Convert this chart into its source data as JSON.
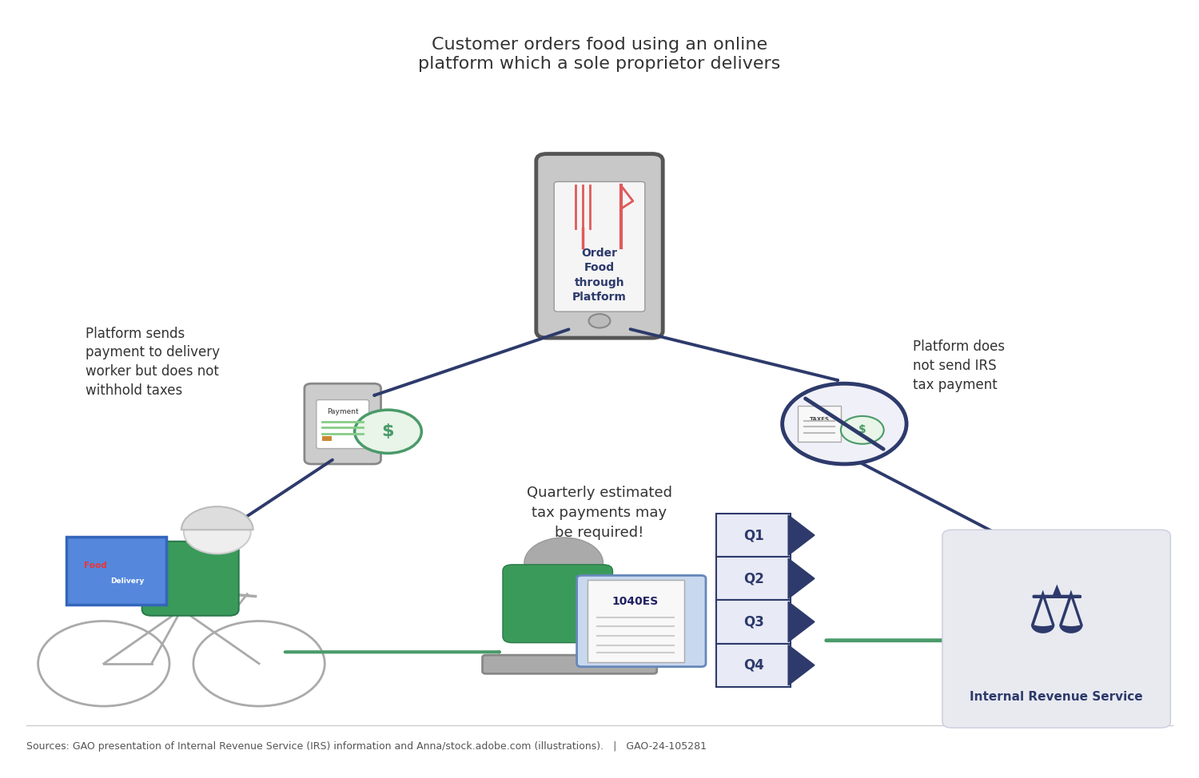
{
  "title_text": "Customer orders food using an online\nplatform which a sole proprietor delivers",
  "title_fontsize": 16,
  "title_color": "#333333",
  "background_color": "#ffffff",
  "source_text": "Sources: GAO presentation of Internal Revenue Service (IRS) information and Anna/stock.adobe.com (illustrations).   |   GAO-24-105281",
  "source_fontsize": 9,
  "phone_text": "Order\nFood\nthrough\nPlatform",
  "phone_text_color": "#2d3a6b",
  "phone_fork_color": "#e05a5a",
  "left_label": "Platform sends\npayment to delivery\nworker but does not\nwithhold taxes",
  "right_label": "Platform does\nnot send IRS\ntax payment",
  "mid_label": "Quarterly estimated\ntax payments may\nbe required!",
  "payment_color": "#4a9a6a",
  "no_payment_circle_color": "#2d3a6b",
  "arrow_color_blue": "#2d3a6b",
  "arrow_color_green": "#4a9a6a",
  "irs_text": "Internal Revenue Service",
  "irs_text_color": "#2d3a6b",
  "q_labels": [
    "Q1",
    "Q2",
    "Q3",
    "Q4"
  ],
  "q_color": "#2d3a6b",
  "annotation_fontsize": 12
}
